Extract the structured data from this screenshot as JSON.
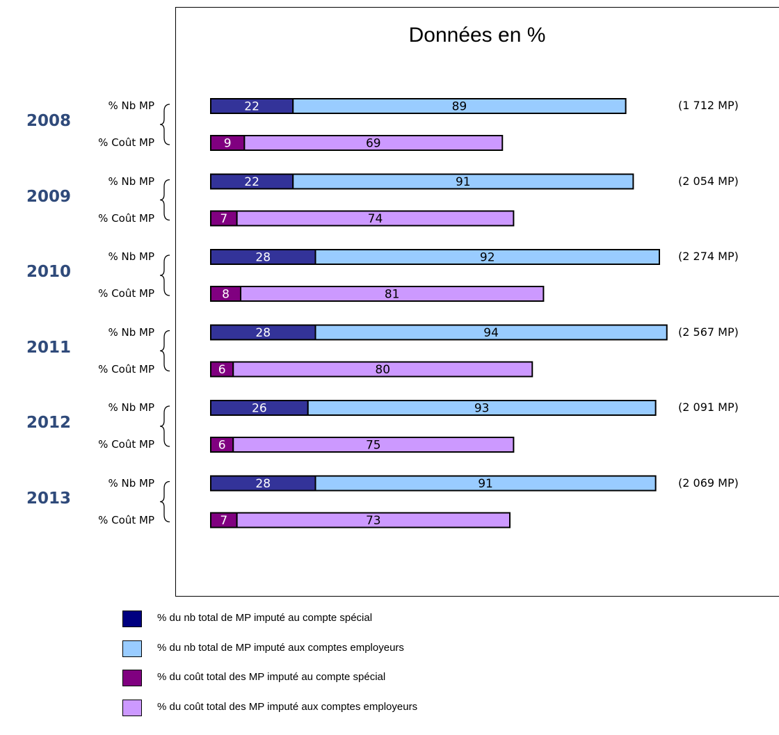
{
  "chart_data": {
    "type": "bar",
    "orientation": "horizontal",
    "stacked": true,
    "title": "Données en %",
    "years": [
      "2008",
      "2009",
      "2010",
      "2011",
      "2012",
      "2013"
    ],
    "row_labels": {
      "count": "% Nb MP",
      "cost": "% Coût MP"
    },
    "totals": [
      "(1 712 MP)",
      "(2 054 MP)",
      "(2 274 MP)",
      "(2 567 MP)",
      "(2 091 MP)",
      "(2 069 MP)"
    ],
    "series": [
      {
        "name": "% du nb total de MP imputé au compte spécial",
        "row": "count",
        "color": "#333399",
        "values": [
          22,
          22,
          28,
          28,
          26,
          28
        ]
      },
      {
        "name": "% du nb total de MP imputé aux comptes employeurs",
        "row": "count",
        "color": "#99CCFF",
        "values": [
          89,
          91,
          92,
          94,
          93,
          91
        ]
      },
      {
        "name": "% du coût total des MP imputé au compte spécial",
        "row": "cost",
        "color": "#800080",
        "values": [
          9,
          7,
          8,
          6,
          6,
          7
        ]
      },
      {
        "name": "% du coût total des MP imputé aux comptes employeurs",
        "row": "cost",
        "color": "#CC99FF",
        "values": [
          69,
          74,
          81,
          80,
          75,
          73
        ]
      }
    ],
    "legend_position": "bottom",
    "grid": false
  },
  "legend": [
    {
      "label": "% du nb total de MP imputé au compte spécial",
      "color": "#000080"
    },
    {
      "label": "% du nb total de MP imputé aux comptes employeurs",
      "color": "#99CCFF"
    },
    {
      "label": "% du coût total des MP imputé au compte spécial",
      "color": "#800080"
    },
    {
      "label": "% du coût total des MP imputé aux comptes employeurs",
      "color": "#CC99FF"
    }
  ]
}
